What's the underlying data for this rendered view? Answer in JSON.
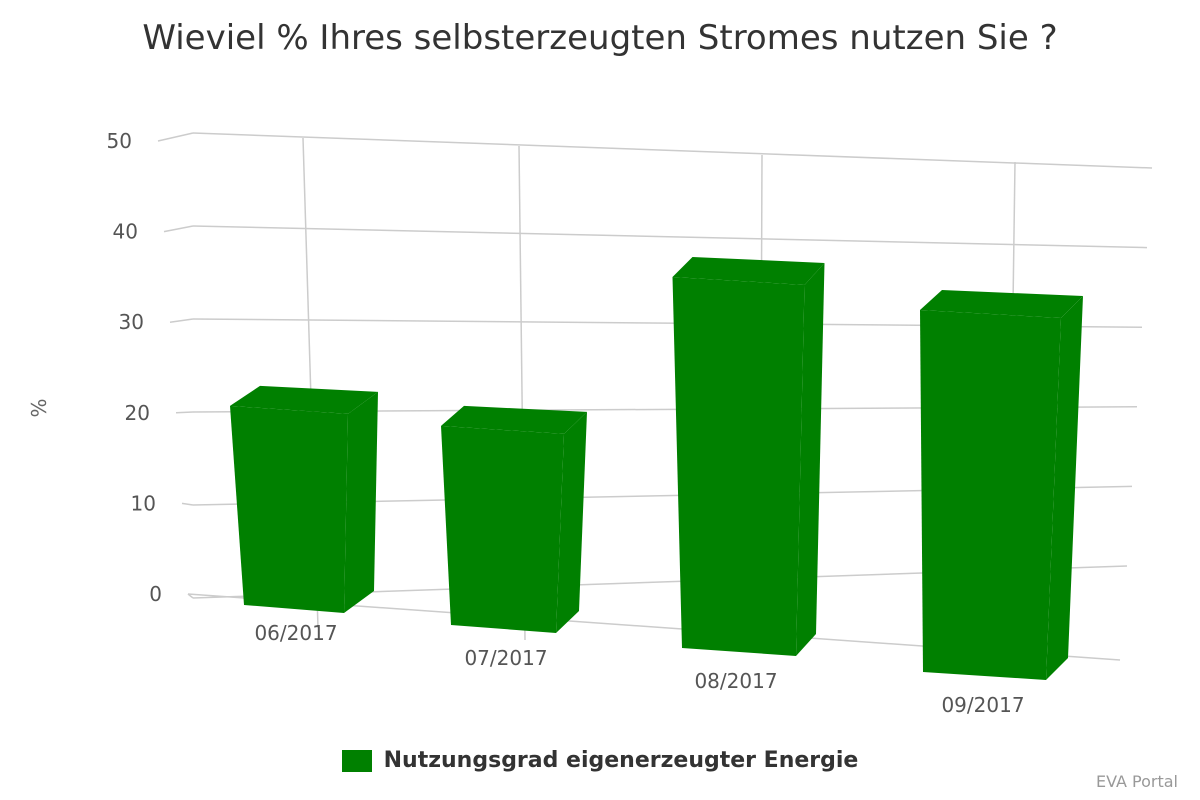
{
  "chart_data": {
    "type": "bar",
    "title": "Wieviel % Ihres selbsterzeugten Stromes nutzen Sie ?",
    "ylabel": "%",
    "xlabel": "",
    "categories": [
      "06/2017",
      "07/2017",
      "08/2017",
      "09/2017"
    ],
    "series": [
      {
        "name": "Nutzungsgrad eigenerzeugter Energie",
        "values": [
          22,
          22,
          41,
          40
        ],
        "color": "#008000"
      }
    ],
    "ylim": [
      0,
      50
    ],
    "yticks": [
      "0",
      "10",
      "20",
      "30",
      "40",
      "50"
    ],
    "grid": true,
    "legend_position": "bottom-center",
    "style": "3d"
  },
  "credits": "EVA Portal"
}
